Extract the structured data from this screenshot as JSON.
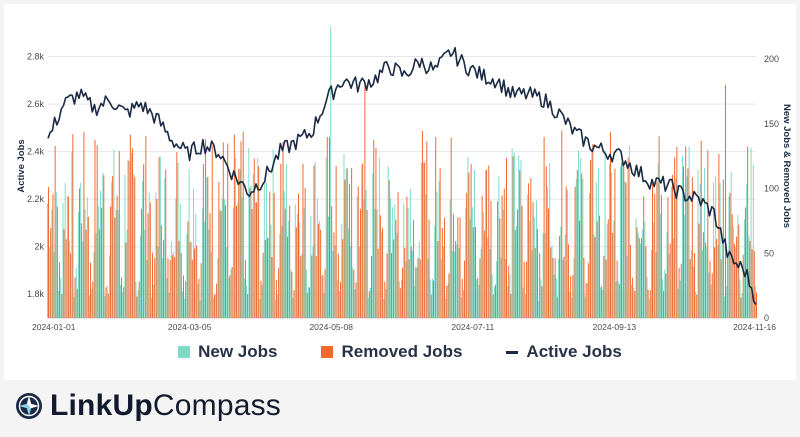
{
  "brand": {
    "name_bold": "LinkUp",
    "name_light": "Compass"
  },
  "legend": {
    "new_jobs": "New Jobs",
    "removed_jobs": "Removed Jobs",
    "active_jobs": "Active Jobs"
  },
  "colors": {
    "new_jobs": "#7fdcc9",
    "removed_jobs": "#f06a32",
    "active_jobs": "#1b2a44"
  },
  "chart_data": {
    "type": "bar",
    "ylabel_left": "Active Jobs",
    "ylabel_right": "New Jobs & Removed Jobs",
    "left_ticks": [
      "1.8k",
      "2k",
      "2.2k",
      "2.4k",
      "2.6k",
      "2.8k"
    ],
    "left_tick_values": [
      1800,
      2000,
      2200,
      2400,
      2600,
      2800
    ],
    "right_ticks": [
      "0",
      "50",
      "100",
      "150",
      "200"
    ],
    "right_tick_values": [
      0,
      50,
      100,
      150,
      200
    ],
    "ylim_left": [
      1700,
      2920
    ],
    "ylim_right": [
      0,
      224
    ],
    "x_ticks": [
      "2024-01-01",
      "2024-03-05",
      "2024-05-08",
      "2024-07-11",
      "2024-09-13",
      "2024-11-16"
    ],
    "x_start": "2024-01-01",
    "x_end": "2024-11-16",
    "grid": true,
    "series": [
      {
        "name": "Active Jobs",
        "axis": "left",
        "kind": "line",
        "x": [
          "2024-01-01",
          "2024-01-08",
          "2024-01-15",
          "2024-01-22",
          "2024-01-29",
          "2024-02-05",
          "2024-02-12",
          "2024-02-19",
          "2024-02-26",
          "2024-03-04",
          "2024-03-11",
          "2024-03-18",
          "2024-03-25",
          "2024-04-01",
          "2024-04-08",
          "2024-04-15",
          "2024-04-22",
          "2024-04-29",
          "2024-05-06",
          "2024-05-13",
          "2024-05-20",
          "2024-05-27",
          "2024-06-03",
          "2024-06-10",
          "2024-06-17",
          "2024-06-24",
          "2024-07-01",
          "2024-07-08",
          "2024-07-15",
          "2024-07-22",
          "2024-07-29",
          "2024-08-05",
          "2024-08-12",
          "2024-08-19",
          "2024-08-26",
          "2024-09-02",
          "2024-09-09",
          "2024-09-16",
          "2024-09-23",
          "2024-09-30",
          "2024-10-07",
          "2024-10-14",
          "2024-10-21",
          "2024-10-28",
          "2024-11-04",
          "2024-11-11",
          "2024-11-16"
        ],
        "y": [
          2450,
          2600,
          2640,
          2580,
          2620,
          2560,
          2600,
          2540,
          2450,
          2390,
          2430,
          2400,
          2300,
          2230,
          2290,
          2400,
          2440,
          2480,
          2620,
          2700,
          2680,
          2700,
          2760,
          2720,
          2780,
          2740,
          2820,
          2760,
          2720,
          2700,
          2640,
          2640,
          2620,
          2560,
          2480,
          2430,
          2400,
          2380,
          2320,
          2270,
          2260,
          2220,
          2200,
          2140,
          1950,
          1900,
          1780
        ]
      }
    ],
    "bar_series": [
      {
        "name": "New Jobs",
        "axis": "right",
        "base_level": 80,
        "variance": 45,
        "peak_value": 229
      },
      {
        "name": "Removed Jobs",
        "axis": "right",
        "base_level": 85,
        "variance": 50,
        "peak_value": 180
      }
    ]
  }
}
